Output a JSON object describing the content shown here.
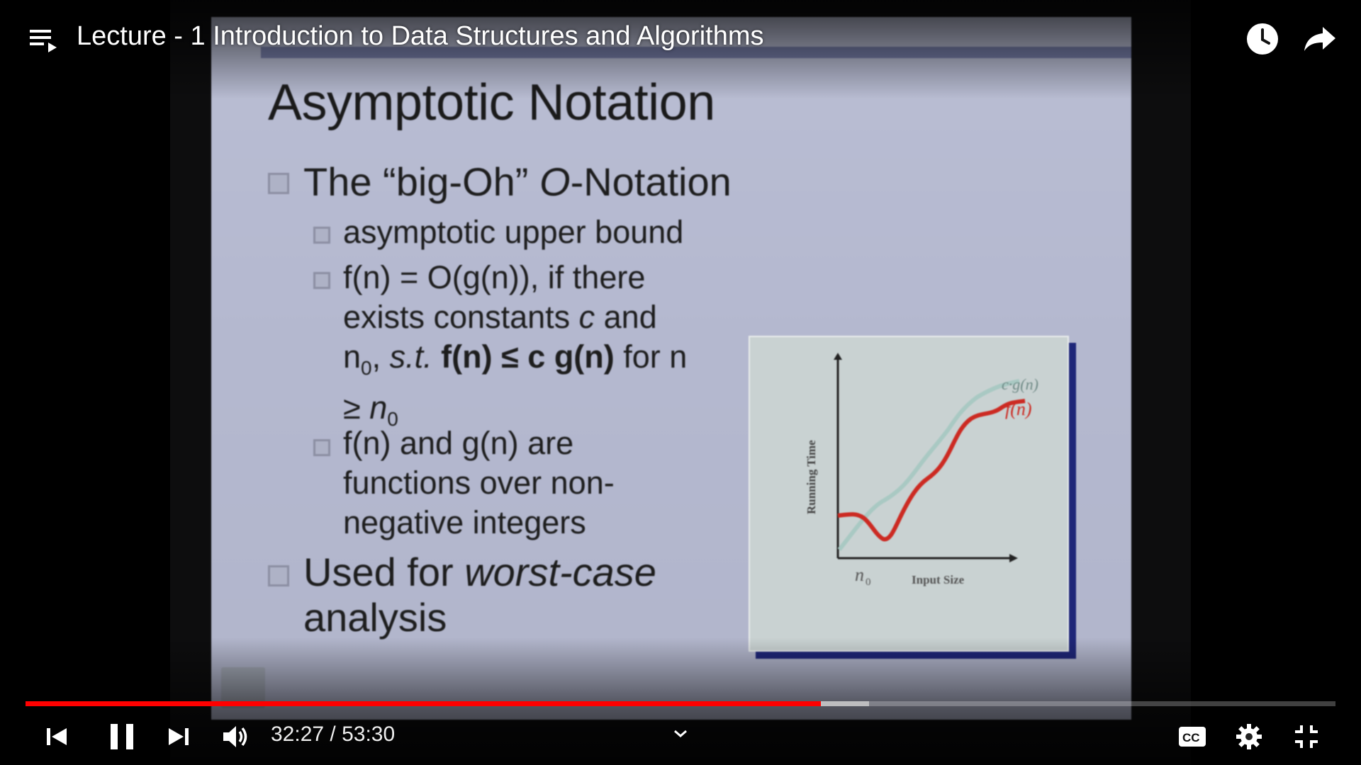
{
  "player": {
    "title": "Lecture - 1 Introduction to Data Structures and Algorithms",
    "time_current": "32:27",
    "time_separator": " / ",
    "time_total": "53:30",
    "progress_played_fraction": 0.607,
    "progress_buffered_fraction": 0.644,
    "accent_color": "#ff0000"
  },
  "icons": {
    "playlist": "playlist-icon",
    "watch_later": "clock-icon",
    "share": "share-arrow-icon",
    "previous": "skip-previous-icon",
    "pause": "pause-icon",
    "next": "skip-next-icon",
    "volume": "volume-icon",
    "chevron": "chevron-down-icon",
    "captions": "cc-icon",
    "settings": "gear-icon",
    "exit_fullscreen": "exit-fullscreen-icon"
  },
  "slide": {
    "title": "Asymptotic Notation",
    "bullet1_a": "The “big-Oh” ",
    "bullet1_b": "O",
    "bullet1_c": "-Notation",
    "sub1": "asymptotic upper bound",
    "sub2_line1": "f(n) = O(g(n)), if there",
    "sub2_line2a": "exists constants ",
    "sub2_line2b": "c",
    "sub2_line2c": " and",
    "sub2_line3a": "n",
    "sub2_line3b": "0",
    "sub2_line3c": ", ",
    "sub2_line3d": "s.t.",
    "sub2_line3e": " f(n) ≤ c g(n)",
    "sub2_line3f": " for n",
    "sub2_line4a": "≥ ",
    "sub2_line4b": "n",
    "sub2_line4c": "0",
    "sub3": "f(n) and g(n) are functions over non-negative integers",
    "bullet2_a": "Used for ",
    "bullet2_b": "worst-case",
    "bullet2_c": " analysis",
    "graph": {
      "y_label": "Running Time",
      "x_label": "Input Size",
      "n0_label": "n",
      "n0_sub": "0",
      "curve_upper_label": "c·g(n)",
      "curve_lower_label": "f(n)",
      "curve_lower_color": "#cc2a22",
      "curve_upper_color": "#a9c9c3"
    }
  }
}
